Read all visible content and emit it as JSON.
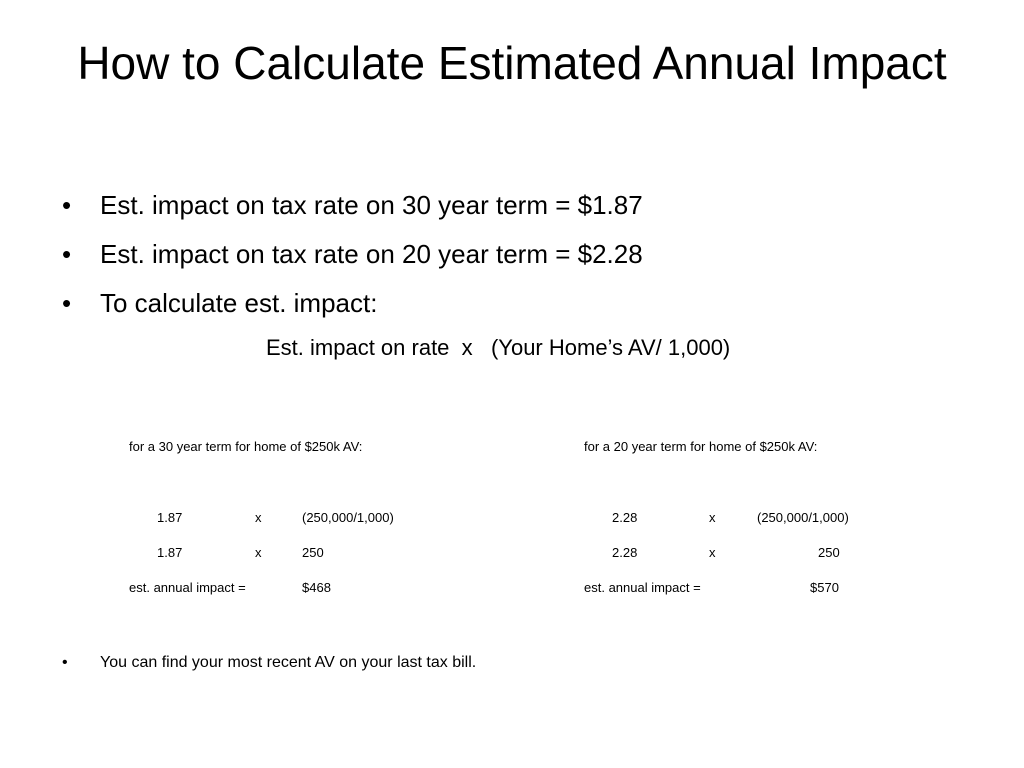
{
  "slide": {
    "title": "How to Calculate Estimated Annual Impact",
    "bullets": [
      "Est. impact on tax rate on 30 year term = $1.87",
      "Est. impact on tax rate on 20 year term = $2.28",
      "To calculate est. impact:"
    ],
    "bullet_char": "•",
    "formula": "Est. impact on rate  x   (Your Home’s AV/ 1,000)",
    "examples": [
      {
        "heading": "for a 30 year term for home of $250k AV:",
        "row1": {
          "rate": "1.87",
          "op": "x",
          "value": "(250,000/1,000)"
        },
        "row2": {
          "rate": "1.87",
          "op": "x",
          "value": "250"
        },
        "result_label": "est. annual impact =",
        "result_value": "$468"
      },
      {
        "heading": "for a 20 year term for home of $250k AV:",
        "row1": {
          "rate": "2.28",
          "op": "x",
          "value": "(250,000/1,000)"
        },
        "row2": {
          "rate": "2.28",
          "op": "x",
          "value": "250"
        },
        "result_label": "est. annual impact =",
        "result_value": "$570"
      }
    ],
    "note": "You can find your most recent AV on your last tax bill."
  }
}
